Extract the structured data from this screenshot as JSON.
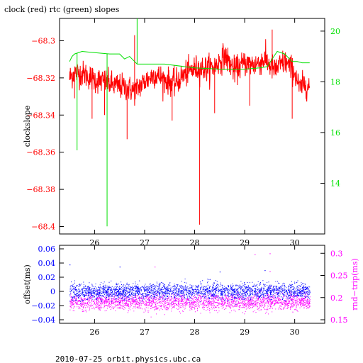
{
  "title": "clock (red) rtc (green) slopes",
  "footer": "2010-07-25  orbit.physics.ubc.ca",
  "colors": {
    "clock": "#ff0000",
    "rtc": "#00e000",
    "offset": "#0000ff",
    "rndtrip": "#ff00ff",
    "axis": "#000000"
  },
  "chart_data": [
    {
      "type": "line",
      "title": "clock (red) rtc (green) slopes",
      "xlabel": "",
      "ylabel": "clockslope",
      "y2label": "",
      "xlim": [
        25.3,
        30.6
      ],
      "ylim": [
        -68.404,
        -68.288
      ],
      "y2lim": [
        12.0,
        20.5
      ],
      "xticks": [
        26,
        27,
        28,
        29,
        30
      ],
      "xtick_labels": [
        "26",
        "27",
        "28",
        "29",
        "30"
      ],
      "yticks": [
        -68.3,
        -68.32,
        -68.34,
        -68.36,
        -68.38,
        -68.4
      ],
      "ytick_labels": [
        "−68.3",
        "−68.32",
        "−68.34",
        "−68.36",
        "−68.38",
        "−68.4"
      ],
      "y2ticks": [
        14,
        16,
        18,
        20
      ],
      "y2tick_labels": [
        "14",
        "16",
        "18",
        "20"
      ],
      "grid": false,
      "series": [
        {
          "name": "clock",
          "axis": "left",
          "x": [
            25.5,
            25.6,
            25.8,
            26.0,
            26.2,
            26.4,
            26.6,
            26.8,
            27.0,
            27.2,
            27.4,
            27.6,
            27.8,
            28.0,
            28.2,
            28.4,
            28.6,
            28.8,
            29.0,
            29.2,
            29.4,
            29.6,
            29.8,
            30.0,
            30.1,
            30.2,
            30.3
          ],
          "y": [
            -68.32,
            -68.317,
            -68.318,
            -68.321,
            -68.322,
            -68.324,
            -68.325,
            -68.327,
            -68.322,
            -68.318,
            -68.321,
            -68.323,
            -68.318,
            -68.315,
            -68.315,
            -68.314,
            -68.308,
            -68.316,
            -68.312,
            -68.313,
            -68.31,
            -68.316,
            -68.311,
            -68.317,
            -68.326,
            -68.323,
            -68.325
          ],
          "spikes": [
            {
              "x": 25.6,
              "y": -68.331
            },
            {
              "x": 25.95,
              "y": -68.342
            },
            {
              "x": 26.2,
              "y": -68.34
            },
            {
              "x": 26.65,
              "y": -68.353
            },
            {
              "x": 26.8,
              "y": -68.297
            },
            {
              "x": 27.55,
              "y": -68.343
            },
            {
              "x": 28.1,
              "y": -68.399
            },
            {
              "x": 28.4,
              "y": -68.339
            },
            {
              "x": 29.1,
              "y": -68.335
            },
            {
              "x": 29.55,
              "y": -68.294
            },
            {
              "x": 29.95,
              "y": -68.342
            }
          ]
        },
        {
          "name": "rtc",
          "axis": "right",
          "x": [
            25.5,
            25.55,
            25.6,
            25.75,
            26.0,
            26.3,
            26.5,
            26.6,
            26.7,
            26.75,
            26.85,
            27.0,
            27.4,
            27.8,
            28.0,
            28.5,
            29.0,
            29.3,
            29.45,
            29.65,
            29.8,
            29.95,
            30.05,
            30.15,
            30.3
          ],
          "y": [
            18.8,
            19.0,
            19.1,
            19.2,
            19.15,
            19.1,
            19.1,
            18.9,
            19.0,
            18.9,
            18.7,
            18.7,
            18.7,
            18.6,
            18.55,
            18.5,
            18.5,
            18.55,
            18.6,
            19.2,
            19.1,
            18.8,
            18.8,
            18.75,
            18.75
          ],
          "spikes": [
            {
              "x": 25.65,
              "y": 15.3
            },
            {
              "x": 26.25,
              "y": 12.3
            },
            {
              "x": 26.85,
              "y": 20.5
            }
          ]
        }
      ]
    },
    {
      "type": "scatter",
      "xlabel": "",
      "ylabel": "offset(ms)",
      "y2label": "rnd−trip(ms)",
      "xlim": [
        25.3,
        30.6
      ],
      "ylim": [
        -0.045,
        0.065
      ],
      "y2lim": [
        0.142,
        0.318
      ],
      "xticks": [
        26,
        27,
        28,
        29,
        30
      ],
      "xtick_labels": [
        "26",
        "27",
        "28",
        "29",
        "30"
      ],
      "yticks": [
        0.06,
        0.04,
        0.02,
        0,
        -0.02,
        -0.04
      ],
      "ytick_labels": [
        "0.06",
        "0.04",
        "0.02",
        "0",
        "−0.02",
        "−0.04"
      ],
      "y2ticks": [
        0.3,
        0.25,
        0.2,
        0.15
      ],
      "y2tick_labels": [
        "0.3",
        "0.25",
        "0.2",
        "0.15"
      ],
      "grid": false,
      "series": [
        {
          "name": "offset",
          "axis": "left",
          "x_range": [
            25.5,
            30.3
          ],
          "center": 0.0,
          "band": [
            -0.012,
            0.012
          ],
          "outliers": [
            {
              "x": 25.5,
              "y": 0.038
            },
            {
              "x": 26.5,
              "y": 0.035
            },
            {
              "x": 29.4,
              "y": 0.03
            },
            {
              "x": 28.5,
              "y": 0.028
            }
          ]
        },
        {
          "name": "rndtrip",
          "axis": "right",
          "x_range": [
            25.5,
            30.3
          ],
          "center": 0.19,
          "band": [
            0.175,
            0.21
          ],
          "outliers": [
            {
              "x": 29.2,
              "y": 0.298
            },
            {
              "x": 29.5,
              "y": 0.3
            },
            {
              "x": 27.2,
              "y": 0.27
            },
            {
              "x": 29.5,
              "y": 0.26
            }
          ]
        }
      ]
    }
  ]
}
